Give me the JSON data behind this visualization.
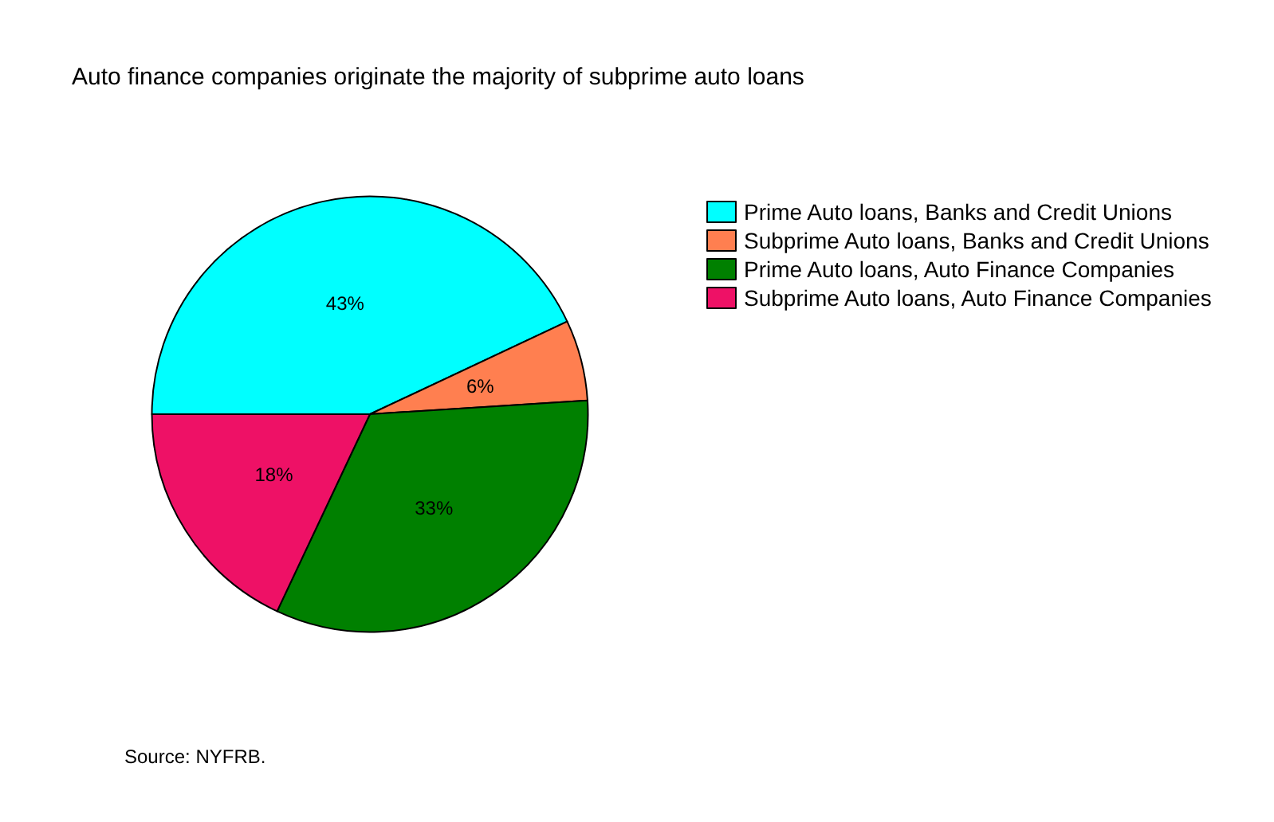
{
  "chart_data": {
    "type": "pie",
    "title": "Auto finance companies originate the majority of subprime auto loans",
    "categories": [
      "Prime Auto loans, Banks and Credit Unions",
      "Subprime Auto loans, Banks and Credit Unions",
      "Prime Auto loans, Auto Finance Companies",
      "Subprime Auto loans, Auto Finance Companies"
    ],
    "values": [
      43,
      6,
      33,
      18
    ],
    "colors": [
      "#00ffff",
      "#ff7f50",
      "#008000",
      "#ee1166"
    ],
    "value_labels": [
      "43%",
      "6%",
      "33%",
      "18%"
    ],
    "legend": "right",
    "annotations": [
      "Source: NYFRB."
    ]
  }
}
